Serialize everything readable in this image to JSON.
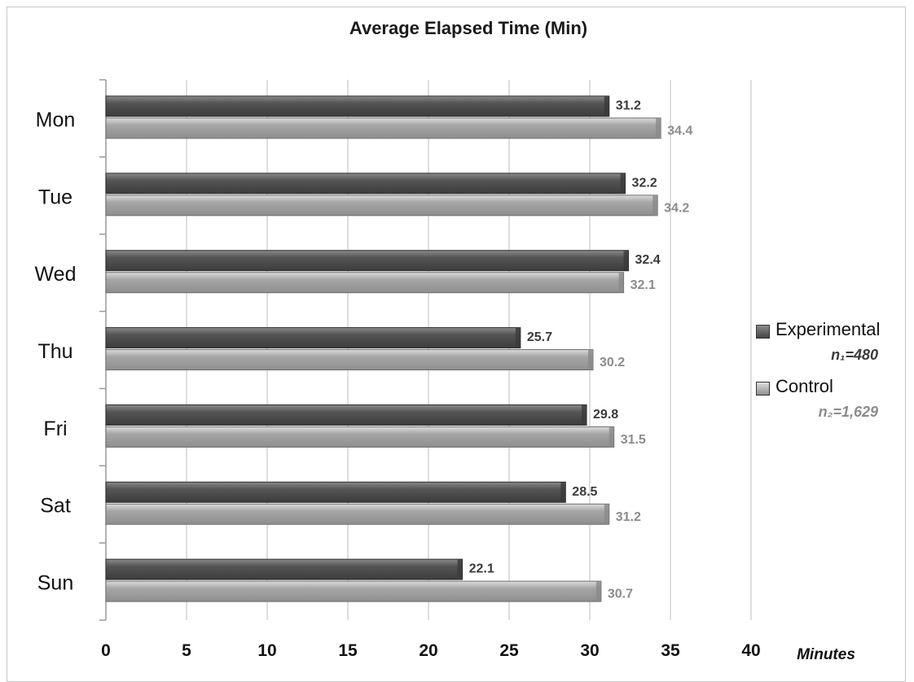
{
  "chart_data": {
    "type": "bar",
    "orientation": "horizontal",
    "title": "Average Elapsed Time (Min)",
    "xlabel": "Minutes",
    "ylabel": "",
    "xlim": [
      0,
      40
    ],
    "x_ticks": [
      "0",
      "5",
      "10",
      "15",
      "20",
      "25",
      "30",
      "35",
      "40"
    ],
    "categories": [
      "Mon",
      "Tue",
      "Wed",
      "Thu",
      "Fri",
      "Sat",
      "Sun"
    ],
    "grid": true,
    "legend_position": "right",
    "series": [
      {
        "name": "Experimental",
        "note": "n₁=480",
        "color": "#555555",
        "values": [
          31.2,
          32.2,
          32.4,
          25.7,
          29.8,
          28.5,
          22.1
        ],
        "labels": [
          "31.2",
          "32.2",
          "32.4",
          "25.7",
          "29.8",
          "28.5",
          "22.1"
        ]
      },
      {
        "name": "Control",
        "note": "n₂=1,629",
        "color": "#a6a6a6",
        "values": [
          34.4,
          34.2,
          32.1,
          30.2,
          31.5,
          31.2,
          30.7
        ],
        "labels": [
          "34.4",
          "34.2",
          "32.1",
          "30.2",
          "31.5",
          "31.2",
          "30.7"
        ]
      }
    ]
  }
}
